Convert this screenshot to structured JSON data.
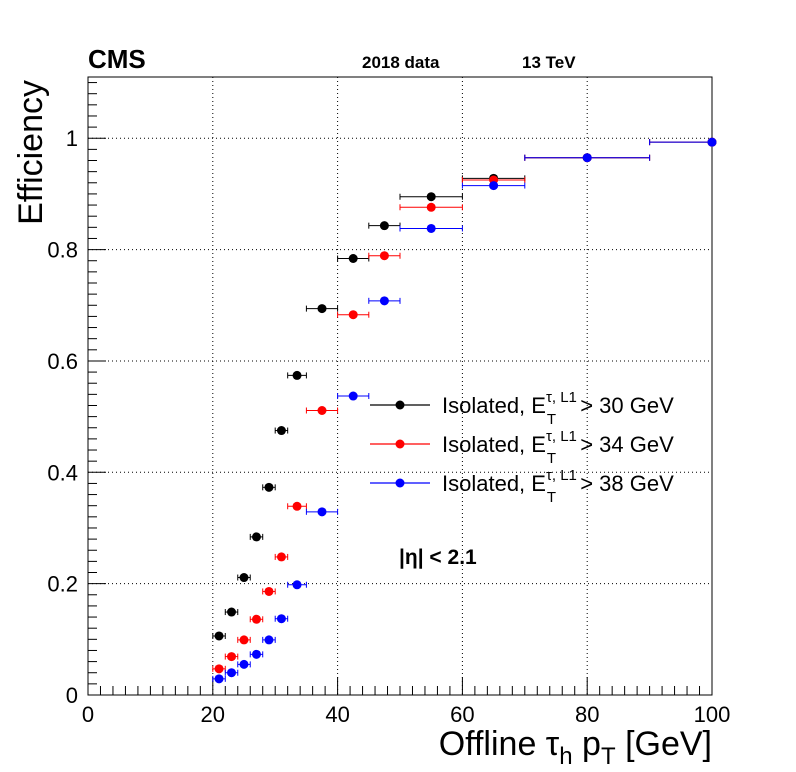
{
  "header": {
    "experiment": "CMS",
    "dataset": "2018 data",
    "energy": "13 TeV"
  },
  "annotation": {
    "eta_cut": "|η| < 2.1"
  },
  "chart_data": {
    "type": "scatter",
    "xlabel": "Offline τh pT [GeV]",
    "ylabel": "Efficiency",
    "xlim": [
      0,
      100
    ],
    "ylim": [
      0,
      1.11
    ],
    "x_ticks": [
      0,
      20,
      40,
      60,
      80,
      100
    ],
    "y_ticks": [
      0,
      0.2,
      0.4,
      0.6,
      0.8,
      1
    ],
    "grid": true,
    "legend_position": "right-middle",
    "series": [
      {
        "name": "Isolated, E_T^{τ, L1} > 30 GeV",
        "legend_text": "Isolated, E",
        "legend_sup": "τ, L1",
        "legend_sub": "T",
        "legend_tail": " > 30 GeV",
        "color": "#000000",
        "points": [
          {
            "x": 21,
            "xerr": 1,
            "y": 0.106
          },
          {
            "x": 23,
            "xerr": 1,
            "y": 0.149
          },
          {
            "x": 25,
            "xerr": 1,
            "y": 0.211
          },
          {
            "x": 27,
            "xerr": 1,
            "y": 0.284
          },
          {
            "x": 29,
            "xerr": 1,
            "y": 0.373
          },
          {
            "x": 31,
            "xerr": 1,
            "y": 0.475
          },
          {
            "x": 33.5,
            "xerr": 1.5,
            "y": 0.574
          },
          {
            "x": 37.5,
            "xerr": 2.5,
            "y": 0.694
          },
          {
            "x": 42.5,
            "xerr": 2.5,
            "y": 0.784
          },
          {
            "x": 47.5,
            "xerr": 2.5,
            "y": 0.843
          },
          {
            "x": 55,
            "xerr": 5,
            "y": 0.895
          },
          {
            "x": 65,
            "xerr": 5,
            "y": 0.928
          },
          {
            "x": 80,
            "xerr": 10,
            "y": 0.965
          },
          {
            "x": 100,
            "xerr": 10,
            "y": 0.993
          }
        ]
      },
      {
        "name": "Isolated, E_T^{τ, L1} > 34 GeV",
        "legend_text": "Isolated, E",
        "legend_sup": "τ, L1",
        "legend_sub": "T",
        "legend_tail": " > 34 GeV",
        "color": "#ff0000",
        "points": [
          {
            "x": 21,
            "xerr": 1,
            "y": 0.047
          },
          {
            "x": 23,
            "xerr": 1,
            "y": 0.069
          },
          {
            "x": 25,
            "xerr": 1,
            "y": 0.099
          },
          {
            "x": 27,
            "xerr": 1,
            "y": 0.136
          },
          {
            "x": 29,
            "xerr": 1,
            "y": 0.186
          },
          {
            "x": 31,
            "xerr": 1,
            "y": 0.248
          },
          {
            "x": 33.5,
            "xerr": 1.5,
            "y": 0.339
          },
          {
            "x": 37.5,
            "xerr": 2.5,
            "y": 0.511
          },
          {
            "x": 42.5,
            "xerr": 2.5,
            "y": 0.683
          },
          {
            "x": 47.5,
            "xerr": 2.5,
            "y": 0.789
          },
          {
            "x": 55,
            "xerr": 5,
            "y": 0.876
          },
          {
            "x": 65,
            "xerr": 5,
            "y": 0.925
          },
          {
            "x": 80,
            "xerr": 10,
            "y": 0.965
          },
          {
            "x": 100,
            "xerr": 10,
            "y": 0.993
          }
        ]
      },
      {
        "name": "Isolated, E_T^{τ, L1} > 38 GeV",
        "legend_text": "Isolated, E",
        "legend_sup": "τ, L1",
        "legend_sub": "T",
        "legend_tail": " > 38 GeV",
        "color": "#0000ff",
        "points": [
          {
            "x": 21,
            "xerr": 1,
            "y": 0.029
          },
          {
            "x": 23,
            "xerr": 1,
            "y": 0.04
          },
          {
            "x": 25,
            "xerr": 1,
            "y": 0.055
          },
          {
            "x": 27,
            "xerr": 1,
            "y": 0.073
          },
          {
            "x": 29,
            "xerr": 1,
            "y": 0.099
          },
          {
            "x": 31,
            "xerr": 1,
            "y": 0.137
          },
          {
            "x": 33.5,
            "xerr": 1.5,
            "y": 0.198
          },
          {
            "x": 37.5,
            "xerr": 2.5,
            "y": 0.329
          },
          {
            "x": 42.5,
            "xerr": 2.5,
            "y": 0.537
          },
          {
            "x": 47.5,
            "xerr": 2.5,
            "y": 0.708
          },
          {
            "x": 55,
            "xerr": 5,
            "y": 0.838
          },
          {
            "x": 65,
            "xerr": 5,
            "y": 0.915
          },
          {
            "x": 80,
            "xerr": 10,
            "y": 0.965
          },
          {
            "x": 100,
            "xerr": 10,
            "y": 0.993
          }
        ]
      }
    ]
  }
}
